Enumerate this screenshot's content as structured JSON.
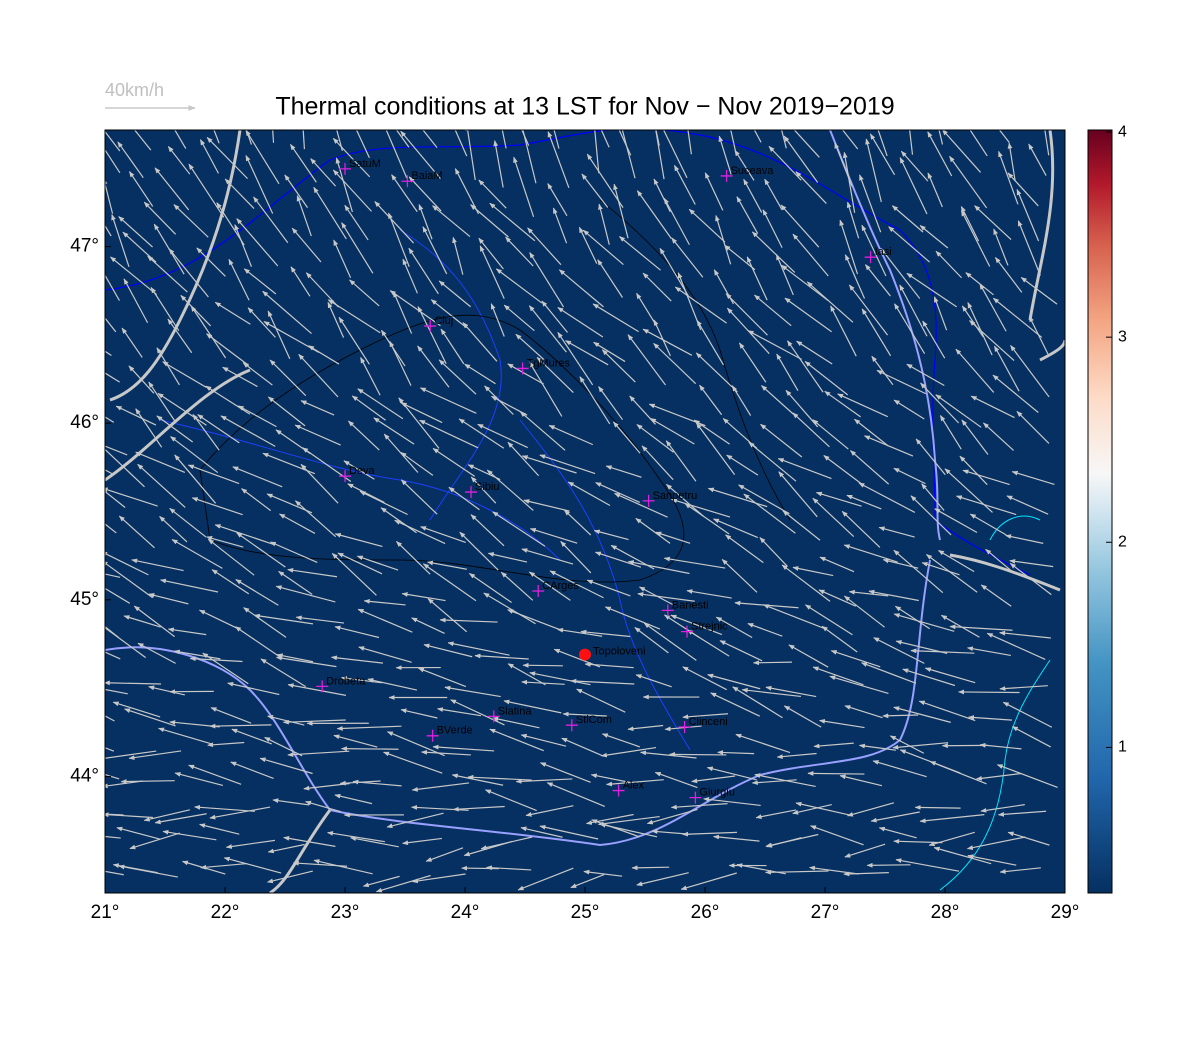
{
  "title": "Thermal conditions at 13 LST for Nov − Nov  2019−2019",
  "scale_arrow": {
    "label": "40km/h"
  },
  "map": {
    "xlim": [
      21,
      29
    ],
    "ylim": [
      43.34,
      47.66
    ],
    "xticks": [
      {
        "value": 21,
        "label": "21°"
      },
      {
        "value": 22,
        "label": "22°"
      },
      {
        "value": 23,
        "label": "23°"
      },
      {
        "value": 24,
        "label": "24°"
      },
      {
        "value": 25,
        "label": "25°"
      },
      {
        "value": 26,
        "label": "26°"
      },
      {
        "value": 27,
        "label": "27°"
      },
      {
        "value": 28,
        "label": "28°"
      },
      {
        "value": 29,
        "label": "29°"
      }
    ],
    "yticks": [
      {
        "value": 44,
        "label": "44°"
      },
      {
        "value": 45,
        "label": "45°"
      },
      {
        "value": 46,
        "label": "46°"
      },
      {
        "value": 47,
        "label": "47°"
      }
    ]
  },
  "colorbar": {
    "lim": [
      0.29,
      4.01
    ],
    "ticks": [
      1,
      2,
      3,
      4
    ]
  },
  "stations": [
    {
      "name": "SatuM",
      "lon": 23.0,
      "lat": 47.44
    },
    {
      "name": "BaiaM",
      "lon": 23.52,
      "lat": 47.37
    },
    {
      "name": "Suceava",
      "lon": 26.18,
      "lat": 47.4
    },
    {
      "name": "Iasi",
      "lon": 27.38,
      "lat": 46.94
    },
    {
      "name": "Cluj",
      "lon": 23.71,
      "lat": 46.55
    },
    {
      "name": "TgMures",
      "lon": 24.48,
      "lat": 46.31
    },
    {
      "name": "Deva",
      "lon": 23.0,
      "lat": 45.7
    },
    {
      "name": "Sibiu",
      "lon": 24.05,
      "lat": 45.61
    },
    {
      "name": "Sanpetru",
      "lon": 25.53,
      "lat": 45.56
    },
    {
      "name": "CArges",
      "lon": 24.61,
      "lat": 45.05
    },
    {
      "name": "Banesti",
      "lon": 25.69,
      "lat": 44.94
    },
    {
      "name": "Strejnic",
      "lon": 25.85,
      "lat": 44.82
    },
    {
      "name": "Drobeta",
      "lon": 22.81,
      "lat": 44.51
    },
    {
      "name": "Slatina",
      "lon": 24.24,
      "lat": 44.34
    },
    {
      "name": "StlCom",
      "lon": 24.89,
      "lat": 44.29
    },
    {
      "name": "Clinceni",
      "lon": 25.83,
      "lat": 44.28
    },
    {
      "name": "BVerde",
      "lon": 23.73,
      "lat": 44.23
    },
    {
      "name": "Alex",
      "lon": 25.28,
      "lat": 43.92
    },
    {
      "name": "Giurgiu",
      "lon": 25.92,
      "lat": 43.88
    }
  ],
  "site": {
    "name": "Topoloveni",
    "lon": 25.0,
    "lat": 44.69
  }
}
